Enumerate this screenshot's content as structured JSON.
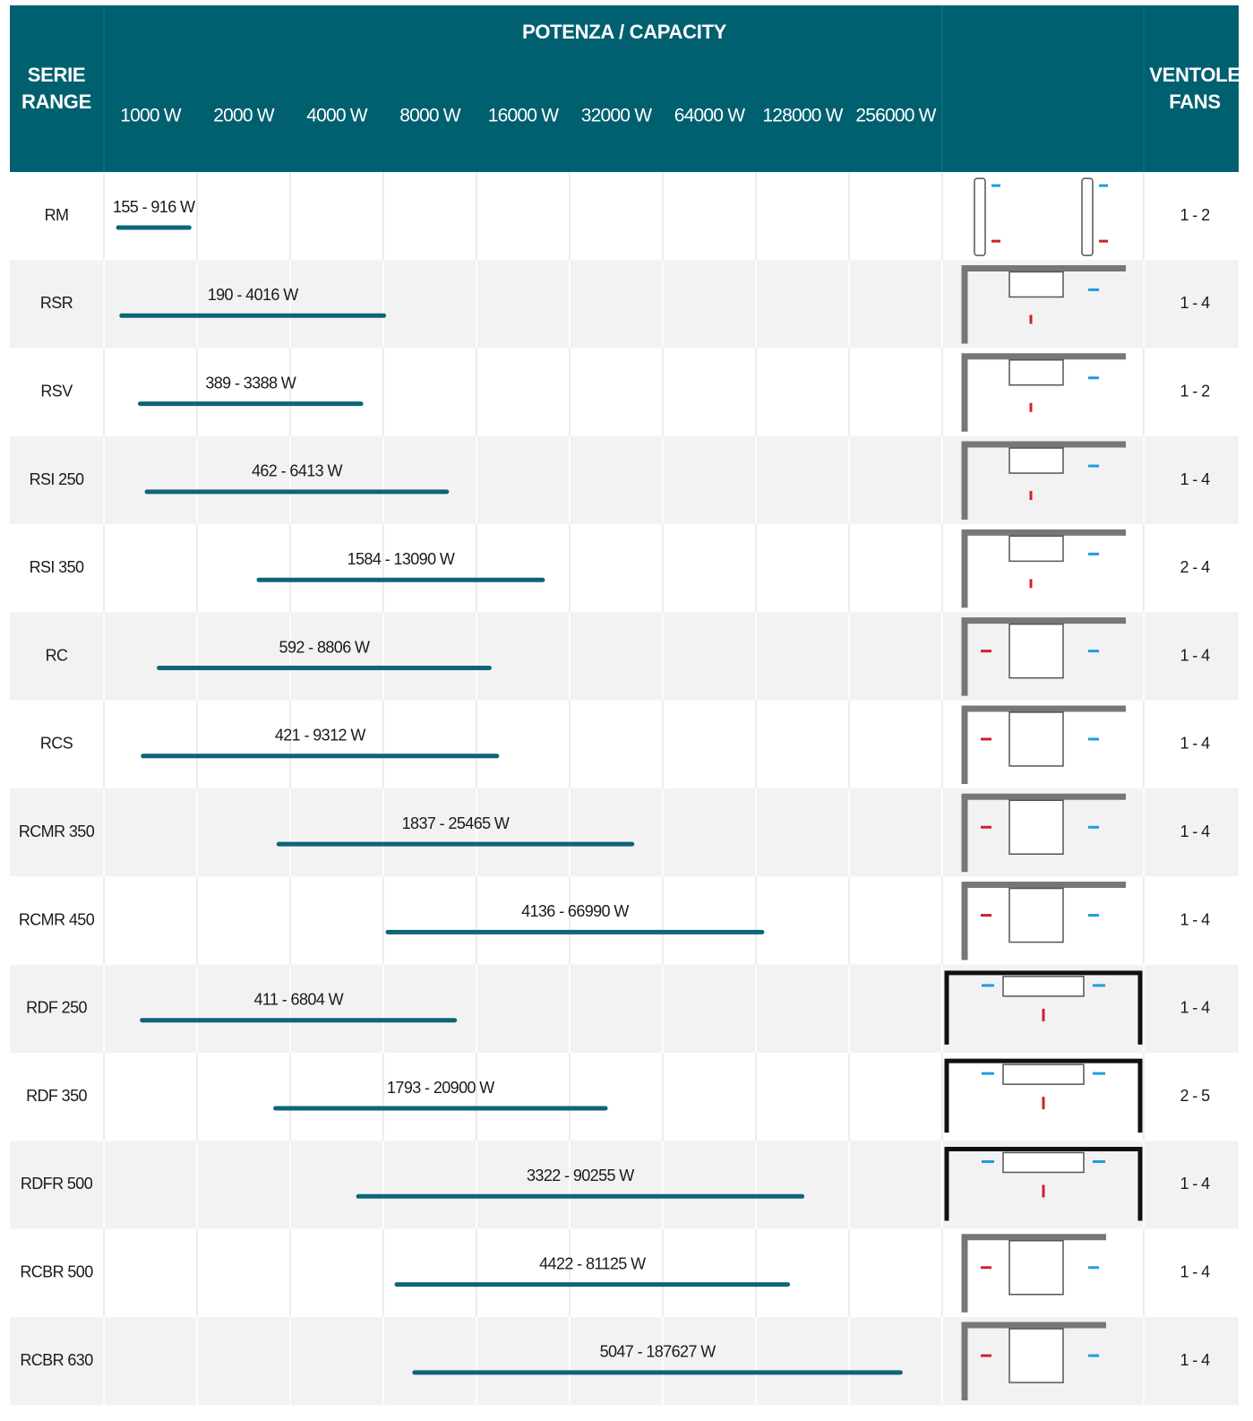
{
  "header": {
    "title": "POTENZA / CAPACITY",
    "serie": [
      "SERIE",
      "RANGE"
    ],
    "fans": [
      "VENTOLE",
      "FANS"
    ]
  },
  "capacity_ticks": [
    {
      "value": 1000,
      "label": "1000 W"
    },
    {
      "value": 2000,
      "label": "2000 W"
    },
    {
      "value": 4000,
      "label": "4000 W"
    },
    {
      "value": 8000,
      "label": "8000 W"
    },
    {
      "value": 16000,
      "label": "16000 W"
    },
    {
      "value": 32000,
      "label": "32000 W"
    },
    {
      "value": 64000,
      "label": "64000 W"
    },
    {
      "value": 128000,
      "label": "128000 W"
    },
    {
      "value": 256000,
      "label": "256000 W"
    }
  ],
  "rows": [
    {
      "name": "RM",
      "min": 155,
      "max": 916,
      "label": "155 - 916 W",
      "fans": "1 - 2"
    },
    {
      "name": "RSR",
      "min": 190,
      "max": 4016,
      "label": "190 - 4016 W",
      "fans": "1 - 4"
    },
    {
      "name": "RSV",
      "min": 389,
      "max": 3388,
      "label": "389 - 3388 W",
      "fans": "1 - 2"
    },
    {
      "name": "RSI 250",
      "min": 462,
      "max": 6413,
      "label": "462 - 6413 W",
      "fans": "1 - 4"
    },
    {
      "name": "RSI 350",
      "min": 1584,
      "max": 13090,
      "label": "1584 - 13090 W",
      "fans": "2 - 4"
    },
    {
      "name": "RC",
      "min": 592,
      "max": 8806,
      "label": "592 - 8806 W",
      "fans": "1 - 4"
    },
    {
      "name": "RCS",
      "min": 421,
      "max": 9312,
      "label": "421 - 9312 W",
      "fans": "1 - 4"
    },
    {
      "name": "RCMR 350",
      "min": 1837,
      "max": 25465,
      "label": "1837 - 25465 W",
      "fans": "1 - 4"
    },
    {
      "name": "RCMR 450",
      "min": 4136,
      "max": 66990,
      "label": "4136 - 66990 W",
      "fans": "1 - 4"
    },
    {
      "name": "RDF 250",
      "min": 411,
      "max": 6804,
      "label": "411 - 6804 W",
      "fans": "1 - 4"
    },
    {
      "name": "RDF 350",
      "min": 1793,
      "max": 20900,
      "label": "1793 - 20900 W",
      "fans": "2 - 5"
    },
    {
      "name": "RDFR 500",
      "min": 3322,
      "max": 90255,
      "label": "3322 - 90255 W",
      "fans": "1 - 4"
    },
    {
      "name": "RCBR 500",
      "min": 4422,
      "max": 81125,
      "label": "4422 - 81125 W",
      "fans": "1 - 4"
    },
    {
      "name": "RCBR 630",
      "min": 5047,
      "max": 187627,
      "label": "5047 - 187627 W",
      "fans": "1 - 4"
    }
  ]
}
